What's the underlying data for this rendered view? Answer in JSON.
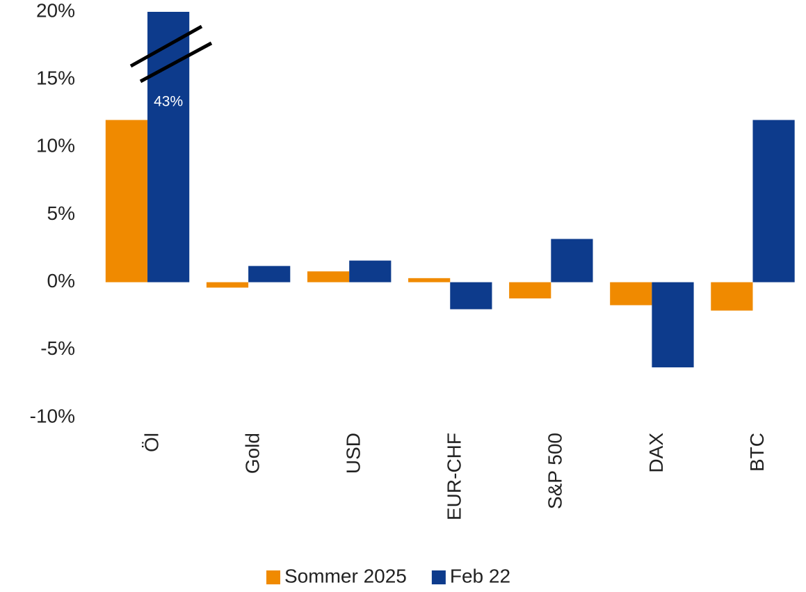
{
  "chart_data": {
    "type": "bar",
    "categories": [
      "Öl",
      "Gold",
      "USD",
      "EUR-CHF",
      "S&P 500",
      "DAX",
      "BTC"
    ],
    "series": [
      {
        "name": "Sommer 2025",
        "color": "#f08a00",
        "values": [
          12.0,
          -0.4,
          0.8,
          0.3,
          -1.2,
          -1.7,
          -2.1
        ]
      },
      {
        "name": "Feb 22",
        "color": "#0d3b8c",
        "values": [
          43,
          1.2,
          1.6,
          -2.0,
          3.2,
          -6.3,
          12.0
        ],
        "value_labels": [
          "43%",
          null,
          null,
          null,
          null,
          null,
          null
        ]
      }
    ],
    "ylim": [
      -10,
      20
    ],
    "yticks": [
      {
        "value": -10,
        "label": "-10%"
      },
      {
        "value": -5,
        "label": "-5%"
      },
      {
        "value": 0,
        "label": "0%"
      },
      {
        "value": 5,
        "label": "5%"
      },
      {
        "value": 10,
        "label": "10%"
      },
      {
        "value": 15,
        "label": "15%"
      },
      {
        "value": 20,
        "label": "20%"
      }
    ],
    "grid": false,
    "legend": "bottom"
  }
}
